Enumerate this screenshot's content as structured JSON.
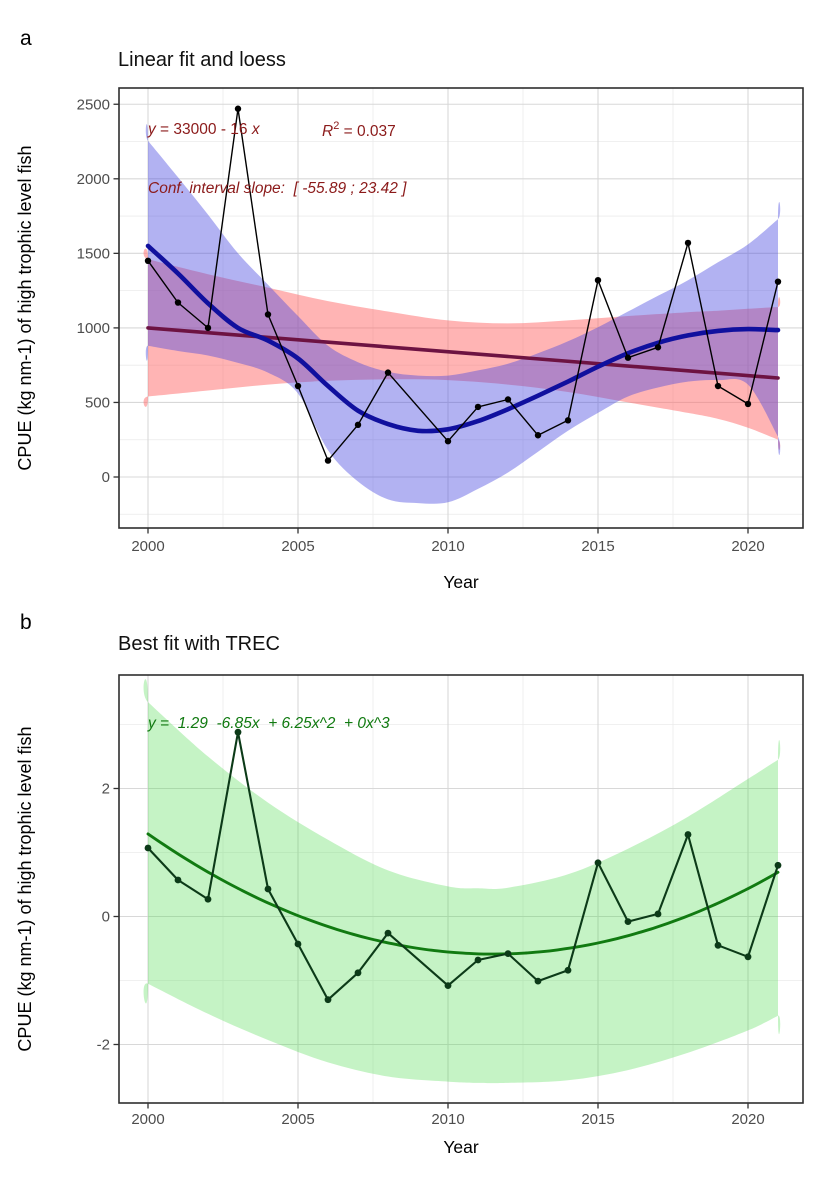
{
  "figure": {
    "panel_a_label": "a",
    "panel_b_label": "b",
    "panel_a_title": "Linear fit and loess",
    "panel_b_title": "Best fit with TREC",
    "y_axis_title": "CPUE (kg nm-1) of high trophic level fish",
    "x_axis_title": "Year"
  },
  "annotations": {
    "a_eq_y": "y",
    "a_eq_mid": " = 33000 - 16 ",
    "a_eq_x": "x",
    "a_r2_var": "R",
    "a_r2_sup": "2",
    "a_r2_rest": " = 0.037",
    "a_conf": "Conf. interval slope:  [ -55.89 ; 23.42 ]",
    "b_equation": "y =  1.29  -6.85x  + 6.25x^2  + 0x^3"
  },
  "colors": {
    "panel_border": "#2E2E2E",
    "grid_major": "#D8D8D8",
    "grid_minor": "#EBEBEB",
    "tick_mark": "#333333",
    "tick_label": "#4D4D4D",
    "data_a": "#000000",
    "data_b": "#0C3A18",
    "loess_line": "#10109E",
    "loess_band": "#4848E0",
    "linear_line": "#6D1342",
    "linear_band": "#FF6A6A",
    "trec_line": "#117A11",
    "trec_band": "#50DC50",
    "annotation_a": "#8B1A1A",
    "annotation_b": "#117A11"
  },
  "chart_data": [
    {
      "id": "a",
      "type": "line",
      "title": "Linear fit and loess",
      "xlabel": "Year",
      "ylabel": "CPUE (kg nm-1) of high trophic level fish",
      "xticks": [
        2000,
        2005,
        2010,
        2015,
        2020
      ],
      "yticks": [
        0,
        500,
        1000,
        1500,
        2000,
        2500
      ],
      "xlim": [
        1999,
        2022.1
      ],
      "ylim": [
        -340,
        2610
      ],
      "x": [
        2000,
        2001,
        2002,
        2003,
        2004,
        2005,
        2006,
        2007,
        2008,
        2010,
        2011,
        2012,
        2013,
        2014,
        2015,
        2016,
        2017,
        2018,
        2019,
        2020,
        2021
      ],
      "values": [
        1450,
        1170,
        1000,
        2470,
        1090,
        610,
        110,
        350,
        700,
        240,
        470,
        520,
        280,
        380,
        1320,
        800,
        870,
        1570,
        610,
        490,
        1310
      ],
      "fits": [
        {
          "name": "linear-fit",
          "equation": "y = 33000 - 16 x",
          "r_squared": 0.037,
          "slope_ci": [
            -55.89,
            23.42
          ],
          "line_color": "#6D1342",
          "band_color": "#FF6A6A",
          "band_opacity": 0.5,
          "line": [
            [
              2000,
              1000
            ],
            [
              2021,
              664
            ]
          ],
          "band_years": [
            2000,
            2002,
            2004,
            2006,
            2008,
            2010,
            2012,
            2014,
            2016,
            2018,
            2019,
            2020,
            2021
          ],
          "band_upper": [
            1460,
            1360,
            1270,
            1180,
            1110,
            1050,
            1030,
            1050,
            1080,
            1105,
            1115,
            1128,
            1140
          ],
          "band_lower": [
            540,
            580,
            620,
            645,
            655,
            650,
            620,
            570,
            500,
            430,
            390,
            330,
            250
          ]
        },
        {
          "name": "loess",
          "line_color": "#10109E",
          "band_color": "#4848E0",
          "band_opacity": 0.42,
          "curve": [
            [
              2000,
              1550
            ],
            [
              2001,
              1365
            ],
            [
              2002,
              1165
            ],
            [
              2003,
              1000
            ],
            [
              2004,
              915
            ],
            [
              2005,
              795
            ],
            [
              2006,
              610
            ],
            [
              2007,
              445
            ],
            [
              2008,
              355
            ],
            [
              2009,
              310
            ],
            [
              2010,
              320
            ],
            [
              2011,
              375
            ],
            [
              2012,
              455
            ],
            [
              2013,
              545
            ],
            [
              2014,
              640
            ],
            [
              2015,
              740
            ],
            [
              2016,
              830
            ],
            [
              2017,
              900
            ],
            [
              2018,
              950
            ],
            [
              2019,
              980
            ],
            [
              2020,
              992
            ],
            [
              2021,
              985
            ]
          ],
          "band_years": [
            2000,
            2001,
            2002,
            2003,
            2004,
            2005,
            2006,
            2007,
            2008,
            2009,
            2010,
            2011,
            2012,
            2013,
            2014,
            2015,
            2016,
            2017,
            2018,
            2019,
            2020,
            2021
          ],
          "band_upper": [
            2255,
            2010,
            1760,
            1500,
            1290,
            1080,
            880,
            770,
            705,
            680,
            680,
            715,
            760,
            830,
            910,
            1005,
            1110,
            1215,
            1320,
            1440,
            1560,
            1730
          ],
          "band_lower": [
            880,
            845,
            815,
            765,
            700,
            560,
            180,
            -30,
            -150,
            -175,
            -170,
            -80,
            30,
            170,
            310,
            430,
            540,
            600,
            640,
            650,
            620,
            270
          ]
        }
      ]
    },
    {
      "id": "b",
      "type": "line",
      "title": "Best fit with TREC",
      "xlabel": "Year",
      "ylabel": "CPUE (kg nm-1) of high trophic level fish",
      "xticks": [
        2000,
        2005,
        2010,
        2015,
        2020
      ],
      "yticks": [
        -2,
        0,
        2
      ],
      "xlim": [
        1999,
        2022.1
      ],
      "ylim": [
        -2.91,
        3.77
      ],
      "x": [
        2000,
        2001,
        2002,
        2003,
        2004,
        2005,
        2006,
        2007,
        2008,
        2010,
        2011,
        2012,
        2013,
        2014,
        2015,
        2016,
        2017,
        2018,
        2019,
        2020,
        2021
      ],
      "values": [
        1.07,
        0.57,
        0.27,
        2.88,
        0.43,
        -0.43,
        -1.3,
        -0.88,
        -0.26,
        -1.08,
        -0.68,
        -0.58,
        -1.01,
        -0.84,
        0.84,
        -0.08,
        0.04,
        1.28,
        -0.45,
        -0.63,
        0.8
      ],
      "fits": [
        {
          "name": "trec-polynomial",
          "equation": "y = 1.29 - 6.85x + 6.25x^2 + 0x^3",
          "coefficients": {
            "intercept": 1.29,
            "x": -6.85,
            "x2": 6.25,
            "x3": 0
          },
          "x_transform": "(year - 2000) / 21",
          "line_color": "#117A11",
          "band_color": "#50DC50",
          "band_opacity": 0.33,
          "band_years": [
            2000,
            2002,
            2004,
            2006,
            2008,
            2010,
            2011,
            2012,
            2014,
            2016,
            2018,
            2020,
            2021
          ],
          "band_upper": [
            3.35,
            2.5,
            1.78,
            1.2,
            0.72,
            0.47,
            0.44,
            0.45,
            0.66,
            1.06,
            1.56,
            2.15,
            2.45
          ],
          "band_lower": [
            -1.05,
            -1.52,
            -1.93,
            -2.28,
            -2.5,
            -2.58,
            -2.6,
            -2.6,
            -2.56,
            -2.4,
            -2.13,
            -1.78,
            -1.55
          ]
        }
      ]
    }
  ]
}
